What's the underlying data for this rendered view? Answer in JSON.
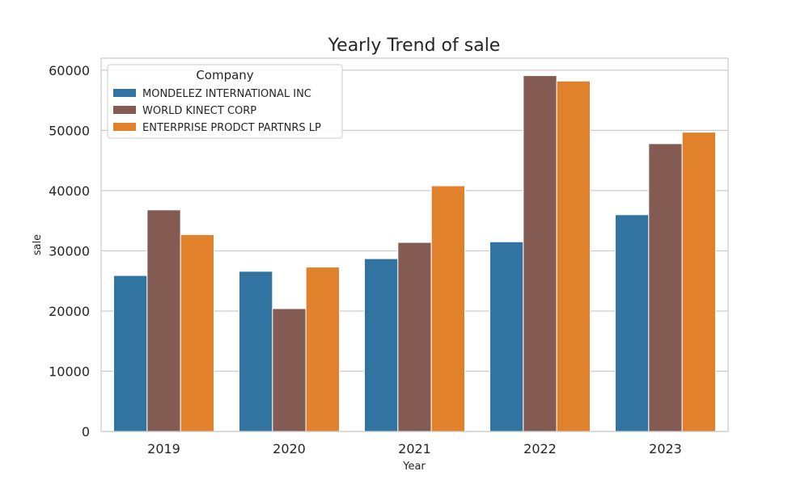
{
  "chart_data": {
    "type": "bar",
    "title": "Yearly Trend of sale",
    "xlabel": "Year",
    "ylabel": "sale",
    "categories": [
      "2019",
      "2020",
      "2021",
      "2022",
      "2023"
    ],
    "series": [
      {
        "name": "MONDELEZ INTERNATIONAL INC",
        "color": "#3274a1",
        "values": [
          25900,
          26600,
          28700,
          31500,
          36000
        ]
      },
      {
        "name": "WORLD KINECT CORP",
        "color": "#845b52",
        "values": [
          36800,
          20400,
          31400,
          59100,
          47800
        ]
      },
      {
        "name": "ENTERPRISE PRODCT PARTNRS LP",
        "color": "#e1812c",
        "values": [
          32700,
          27300,
          40800,
          58200,
          49700
        ]
      }
    ],
    "ylim": [
      0,
      62000
    ],
    "yticks": [
      0,
      10000,
      20000,
      30000,
      40000,
      50000,
      60000
    ],
    "grid": true,
    "legend": {
      "title": "Company",
      "placement": "top-left"
    }
  }
}
